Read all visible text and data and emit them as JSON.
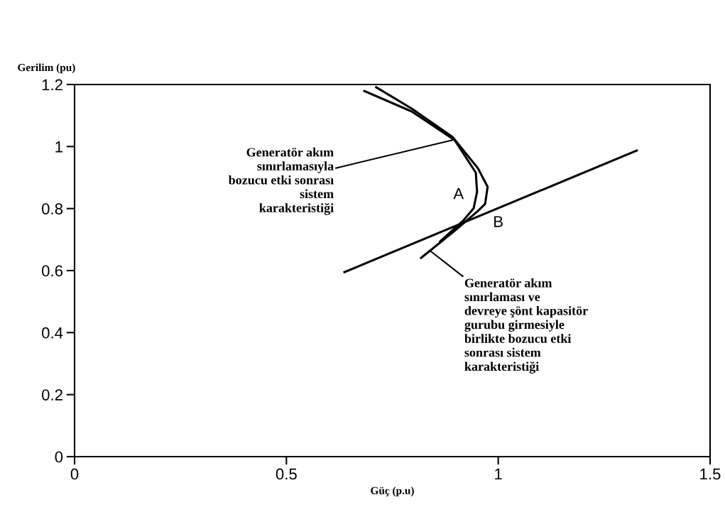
{
  "chart_data": {
    "type": "line",
    "xlabel": "Güç (p.u)",
    "ylabel": "Gerilim (pu)",
    "series": [
      {
        "color": "#000000",
        "x": [
          0.684,
          0.796,
          0.897,
          0.947,
          0.95,
          0.942,
          0.918,
          0.863
        ],
        "values": [
          1.179,
          1.113,
          1.021,
          0.916,
          0.854,
          0.801,
          0.762,
          0.694
        ]
      },
      {
        "color": "#000000",
        "x": [
          0.712,
          0.796,
          0.892,
          0.952,
          0.975,
          0.969,
          0.952,
          0.897,
          0.818
        ],
        "values": [
          1.191,
          1.122,
          1.031,
          0.93,
          0.87,
          0.815,
          0.792,
          0.728,
          0.641
        ]
      },
      {
        "color": "#000000",
        "x": [
          0.637,
          1.327
        ],
        "values": [
          0.595,
          0.987
        ]
      }
    ],
    "annotations": [
      {
        "text": "Generatör akım\nsınırlamasıyla\nbozucu etki sonrası\nsistem\nkarakteristiği",
        "x": 0.892,
        "y": 1.021
      },
      {
        "text": "Generatör akım\nsınırlaması ve\ndevreye şönt kapasitör\ngurubu girmesiyle\nbirlikte bozucu etki\nsonrası sistem\nkarakteristiği",
        "x": 0.839,
        "y": 0.664
      },
      {
        "text": "A",
        "x": 0.942,
        "y": 0.801
      },
      {
        "text": "B",
        "x": 0.969,
        "y": 0.79
      }
    ],
    "xlim": [
      0,
      1.5
    ],
    "ylim": [
      0,
      1.2
    ],
    "xticks": [
      0,
      0.5,
      1,
      1.5
    ],
    "yticks": [
      0,
      0.2,
      0.4,
      0.6,
      0.8,
      1,
      1.2
    ],
    "grid": false,
    "legend": false,
    "marker": "none",
    "line_style": "solid"
  }
}
